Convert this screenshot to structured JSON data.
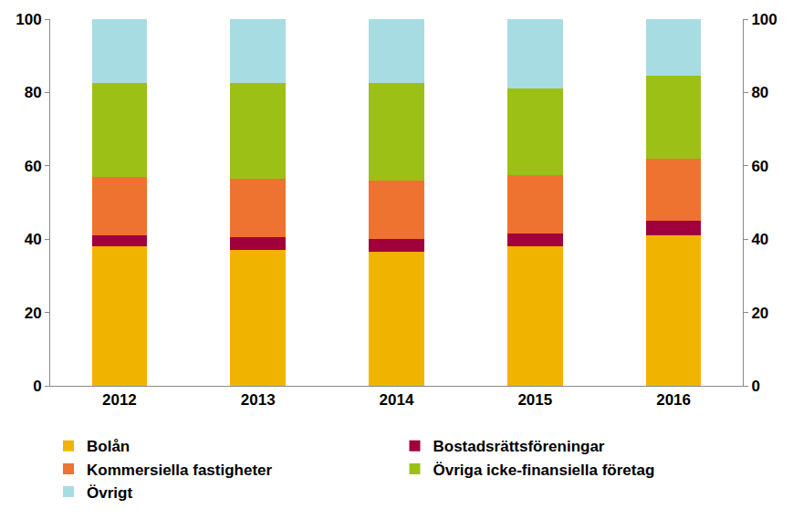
{
  "chart_data": {
    "type": "bar",
    "stacked": true,
    "categories": [
      "2012",
      "2013",
      "2014",
      "2015",
      "2016"
    ],
    "series": [
      {
        "name": "Bolån",
        "color": "#f0b400",
        "values": [
          38,
          37,
          36.5,
          38,
          41
        ]
      },
      {
        "name": "Bostadsrättsföreningar",
        "color": "#a0003c",
        "values": [
          3,
          3.5,
          3.5,
          3.5,
          4
        ]
      },
      {
        "name": "Kommersiella fastigheter",
        "color": "#ee7330",
        "values": [
          16,
          16,
          16,
          16,
          17
        ]
      },
      {
        "name": "Övriga icke-finansiella företag",
        "color": "#9dc016",
        "values": [
          25.5,
          26,
          26.5,
          23.5,
          22.5
        ]
      },
      {
        "name": "Övrigt",
        "color": "#a8dce3",
        "values": [
          17.5,
          17.5,
          17.5,
          19,
          15.5
        ]
      }
    ],
    "ylim": [
      0,
      100
    ],
    "yticks": [
      0,
      20,
      40,
      60,
      80,
      100
    ],
    "y2lim": [
      0,
      100
    ],
    "y2ticks": [
      0,
      20,
      40,
      60,
      80,
      100
    ],
    "grid": false,
    "legend": "bottom"
  }
}
